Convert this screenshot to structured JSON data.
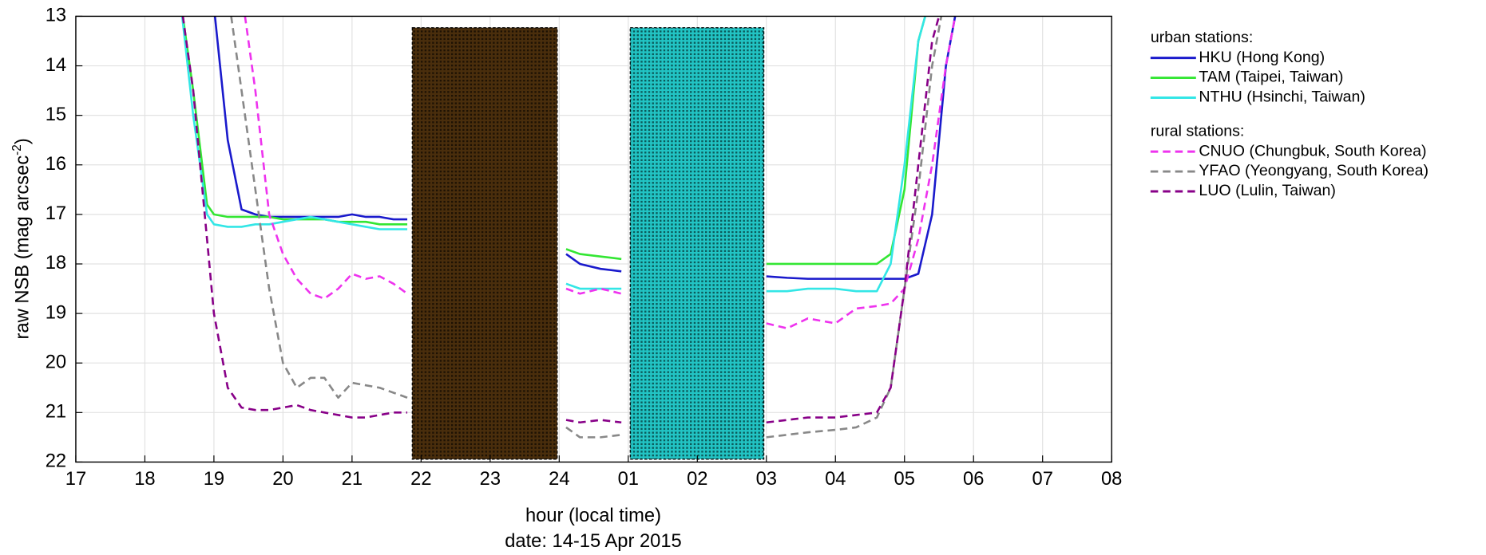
{
  "chart_data": {
    "type": "line",
    "y_label": "raw NSB (mag arcsec",
    "y_label_sup": "-2",
    "y_label_end": ")",
    "x_label": "hour (local time)",
    "x_sublabel": "date: 14-15 Apr 2015",
    "legend_titles": [
      "urban stations:",
      "rural stations:"
    ],
    "xlim": [
      17,
      32
    ],
    "ylim": [
      22,
      13
    ],
    "grid": true,
    "xticks": [
      17,
      18,
      19,
      20,
      21,
      22,
      23,
      24,
      {
        "value": 25,
        "label": "01"
      },
      {
        "value": 26,
        "label": "02"
      },
      {
        "value": 27,
        "label": "03"
      },
      {
        "value": 28,
        "label": "04"
      },
      {
        "value": 29,
        "label": "05"
      },
      {
        "value": 30,
        "label": "06"
      },
      {
        "value": 31,
        "label": "07"
      },
      {
        "value": 32,
        "label": "08"
      }
    ],
    "yticks": [
      13,
      14,
      15,
      16,
      17,
      18,
      19,
      20,
      21,
      22
    ],
    "x": [
      18.5,
      18.7,
      18.9,
      19.0,
      19.2,
      19.4,
      19.6,
      19.8,
      20.0,
      20.2,
      20.4,
      20.6,
      20.8,
      21.0,
      21.2,
      21.4,
      21.6,
      21.8,
      22.0,
      24.1,
      24.3,
      24.6,
      24.9,
      25.0,
      27.0,
      27.3,
      27.6,
      28.0,
      28.3,
      28.6,
      28.8,
      29.0,
      29.2,
      29.4,
      29.6,
      29.8
    ],
    "series": [
      {
        "name": "HKU (Hong Kong)",
        "color": "#1a1acc",
        "group": 0,
        "dashed": false,
        "values": [
          null,
          null,
          null,
          12.8,
          15.5,
          16.9,
          17.0,
          17.05,
          17.05,
          17.05,
          17.05,
          17.05,
          17.05,
          17.0,
          17.05,
          17.05,
          17.1,
          17.1,
          null,
          17.8,
          18.0,
          18.1,
          18.15,
          null,
          18.25,
          18.28,
          18.3,
          18.3,
          18.3,
          18.3,
          18.3,
          18.3,
          18.2,
          17.0,
          14.0,
          12.5
        ]
      },
      {
        "name": "TAM (Taipei, Taiwan)",
        "color": "#33e633",
        "group": 0,
        "dashed": false,
        "values": [
          12.5,
          14.5,
          16.8,
          17.0,
          17.05,
          17.05,
          17.05,
          17.05,
          17.1,
          17.1,
          17.1,
          17.1,
          17.15,
          17.15,
          17.15,
          17.2,
          17.2,
          17.2,
          null,
          17.7,
          17.8,
          17.85,
          17.9,
          null,
          18.0,
          18.0,
          18.0,
          18.0,
          18.0,
          18.0,
          17.8,
          16.5,
          13.5,
          12.5,
          null,
          null
        ]
      },
      {
        "name": "NTHU (Hsinchi, Taiwan)",
        "color": "#33e6e6",
        "group": 0,
        "dashed": false,
        "values": [
          12.5,
          15.0,
          17.0,
          17.2,
          17.25,
          17.25,
          17.2,
          17.2,
          17.15,
          17.1,
          17.05,
          17.1,
          17.15,
          17.2,
          17.25,
          17.3,
          17.3,
          17.3,
          null,
          18.4,
          18.5,
          18.5,
          18.5,
          null,
          18.55,
          18.55,
          18.5,
          18.5,
          18.55,
          18.55,
          18.0,
          16.0,
          13.5,
          12.5,
          null,
          null
        ]
      },
      {
        "name": "CNUO (Chungbuk, South Korea)",
        "color": "#ee33ee",
        "group": 1,
        "dashed": true,
        "values": [
          null,
          null,
          null,
          null,
          null,
          12.5,
          14.5,
          17.0,
          17.8,
          18.3,
          18.6,
          18.7,
          18.5,
          18.2,
          18.3,
          18.25,
          18.4,
          18.6,
          null,
          18.5,
          18.6,
          18.5,
          18.6,
          null,
          19.2,
          19.3,
          19.1,
          19.2,
          18.9,
          18.85,
          18.8,
          18.5,
          17.5,
          16.0,
          14.0,
          12.5
        ]
      },
      {
        "name": "YFAO (Yeongyang, South Korea)",
        "color": "#888888",
        "group": 1,
        "dashed": true,
        "values": [
          null,
          null,
          null,
          null,
          12.5,
          14.5,
          16.5,
          18.5,
          20.0,
          20.5,
          20.3,
          20.3,
          20.7,
          20.4,
          20.45,
          20.5,
          20.6,
          20.7,
          null,
          21.3,
          21.5,
          21.5,
          21.45,
          null,
          21.5,
          21.45,
          21.4,
          21.35,
          21.3,
          21.1,
          20.5,
          18.5,
          16.5,
          14.0,
          12.5,
          null
        ]
      },
      {
        "name": "LUO (Lulin, Taiwan)",
        "color": "#880088",
        "group": 1,
        "dashed": true,
        "values": [
          12.5,
          14.5,
          17.5,
          19.0,
          20.5,
          20.9,
          20.95,
          20.95,
          20.9,
          20.85,
          20.95,
          21.0,
          21.05,
          21.1,
          21.1,
          21.05,
          21.0,
          21.0,
          null,
          21.15,
          21.2,
          21.15,
          21.2,
          null,
          21.2,
          21.15,
          21.1,
          21.1,
          21.05,
          21.0,
          20.5,
          18.5,
          16.0,
          13.5,
          12.5,
          null
        ]
      }
    ]
  }
}
